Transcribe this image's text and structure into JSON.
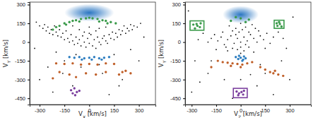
{
  "chart_data": [
    {
      "type": "scatter",
      "x_label": "VX [km/s]",
      "y_label": "VY [km/s]",
      "xlim": [
        -360,
        400
      ],
      "ylim": [
        -500,
        320
      ],
      "xticks": [
        -300,
        -150,
        0,
        150,
        300
      ],
      "yticks": [
        -450,
        -300,
        -150,
        0,
        150,
        300
      ],
      "series": [
        {
          "type": "density",
          "color": "#1f6fbf",
          "x": [
            0
          ],
          "y": [
            235
          ],
          "x_spread": [
            150
          ],
          "y_spread": [
            70
          ]
        },
        {
          "color": "#111111",
          "marker": "circle",
          "x": [
            -300,
            -280,
            -270,
            -260,
            -250,
            -240,
            -230,
            -220,
            -210,
            -200,
            -190,
            -180,
            -170,
            -160,
            -150,
            -140,
            -130,
            -120,
            -110,
            -100,
            -90,
            -80,
            -70,
            -60,
            -50,
            -40,
            -30,
            -20,
            -10,
            0,
            10,
            20,
            30,
            40,
            50,
            60,
            70,
            80,
            90,
            100,
            110,
            120,
            130,
            140,
            150,
            160,
            170,
            180,
            190,
            200,
            210,
            220,
            230,
            240,
            250,
            260,
            270,
            290,
            310,
            -320,
            0,
            -60,
            60,
            -30,
            40,
            -100,
            100,
            0,
            -200,
            -150,
            -250,
            150,
            250,
            -50,
            80,
            200,
            -300,
            -100,
            120,
            -220,
            300,
            30,
            -80,
            180,
            -160,
            60,
            -330,
            330
          ],
          "y": [
            130,
            110,
            140,
            90,
            120,
            70,
            100,
            60,
            130,
            80,
            50,
            100,
            40,
            70,
            20,
            90,
            30,
            0,
            60,
            10,
            -20,
            40,
            -10,
            20,
            -30,
            50,
            0,
            -40,
            30,
            -10,
            60,
            -30,
            20,
            -50,
            40,
            0,
            -20,
            30,
            50,
            10,
            -10,
            60,
            30,
            80,
            20,
            70,
            40,
            100,
            60,
            90,
            130,
            70,
            110,
            90,
            140,
            100,
            130,
            120,
            150,
            160,
            120,
            100,
            110,
            80,
            90,
            130,
            120,
            70,
            -80,
            -150,
            -200,
            -100,
            -60,
            -200,
            -250,
            -300,
            -300,
            -350,
            -420,
            -400,
            -150,
            -120,
            -100,
            -350,
            -250,
            -180,
            -50,
            40
          ]
        },
        {
          "color": "#3a9a4a",
          "marker": "circle",
          "x": [
            -200,
            -180,
            -150,
            -120,
            -100,
            -80,
            -50,
            -20,
            0,
            20,
            50,
            80,
            100,
            130,
            160,
            -140,
            -60,
            60,
            110,
            -220
          ],
          "y": [
            120,
            130,
            150,
            160,
            170,
            175,
            185,
            190,
            195,
            190,
            185,
            175,
            170,
            160,
            150,
            140,
            165,
            165,
            150,
            100
          ]
        },
        {
          "color": "#2f7fc1",
          "marker": "circle",
          "x": [
            -120,
            -90,
            -60,
            -30,
            0,
            30,
            60,
            90,
            120,
            -45,
            15,
            75
          ],
          "y": [
            -120,
            -125,
            -120,
            -130,
            -125,
            -120,
            -130,
            -125,
            -120,
            -140,
            -140,
            -140
          ]
        },
        {
          "color": "#c0602a",
          "marker": "circle",
          "x": [
            -200,
            -150,
            -100,
            -50,
            0,
            50,
            100,
            150,
            200,
            220,
            250,
            -180,
            -120,
            -80,
            -20,
            40,
            100,
            180,
            -220
          ],
          "y": [
            -170,
            -175,
            -170,
            -180,
            -175,
            -180,
            -170,
            -175,
            -240,
            -230,
            -250,
            -240,
            -260,
            -280,
            -250,
            -260,
            -240,
            -260,
            -290
          ]
        },
        {
          "color": "#7b3f9e",
          "marker": "circle",
          "x": [
            -110,
            -90,
            -75,
            -100,
            -60,
            -85
          ],
          "y": [
            -385,
            -370,
            -400,
            -410,
            -390,
            -425
          ]
        }
      ]
    },
    {
      "type": "scatter",
      "x_label": "VZ [km/s]",
      "y_label": "VY [km/s]",
      "xlim": [
        -340,
        430
      ],
      "ylim": [
        -500,
        320
      ],
      "xticks": [
        -300,
        -150,
        0,
        150,
        300
      ],
      "yticks": [
        -450,
        -300,
        -150,
        0,
        150,
        300
      ],
      "series": [
        {
          "type": "density",
          "color": "#1f6fbf",
          "x": [
            0
          ],
          "y": [
            220
          ],
          "x_spread": [
            110
          ],
          "y_spread": [
            70
          ]
        },
        {
          "color": "#111111",
          "marker": "circle",
          "x": [
            0,
            -20,
            20,
            -40,
            40,
            -60,
            60,
            -80,
            80,
            -100,
            100,
            -120,
            120,
            -140,
            140,
            -160,
            160,
            -180,
            180,
            -200,
            200,
            -10,
            10,
            -30,
            30,
            -50,
            50,
            0,
            -20,
            20,
            -50,
            50,
            -80,
            80,
            0,
            -110,
            110,
            -70,
            70,
            0,
            -230,
            230,
            -260,
            260,
            -150,
            150,
            -30,
            30,
            -90,
            90,
            -280,
            -200,
            250,
            300,
            -100,
            100,
            -300,
            200,
            0,
            -50,
            150,
            -250,
            320,
            -320,
            280,
            -180,
            120,
            60
          ],
          "y": [
            0,
            30,
            40,
            -10,
            10,
            50,
            60,
            20,
            30,
            -20,
            0,
            40,
            50,
            10,
            20,
            60,
            70,
            30,
            -10,
            0,
            40,
            80,
            100,
            110,
            120,
            90,
            80,
            -40,
            -60,
            -70,
            -50,
            -40,
            -70,
            -80,
            -90,
            80,
            90,
            130,
            140,
            150,
            70,
            80,
            20,
            30,
            -60,
            -50,
            60,
            -20,
            -40,
            110,
            -150,
            -250,
            -150,
            -300,
            -300,
            -350,
            -400,
            -420,
            -300,
            -450,
            -250,
            -320,
            200,
            250,
            -50,
            -150,
            -180,
            -260
          ]
        },
        {
          "color": "#3a9a4a",
          "marker": "circle",
          "x": [
            -280,
            -265,
            -250,
            -270,
            -245,
            -290,
            225,
            240,
            250,
            235,
            220,
            -60,
            50,
            0,
            -30,
            30
          ],
          "y": [
            110,
            130,
            120,
            145,
            150,
            140,
            130,
            145,
            125,
            160,
            150,
            170,
            180,
            190,
            200,
            160
          ]
        },
        {
          "color": "#2f7fc1",
          "marker": "circle",
          "x": [
            -30,
            -15,
            0,
            15,
            30,
            -10,
            10,
            20
          ],
          "y": [
            -120,
            -135,
            -125,
            -140,
            -130,
            -110,
            -150,
            -115
          ]
        },
        {
          "color": "#c0602a",
          "marker": "circle",
          "x": [
            -140,
            -110,
            -80,
            -50,
            -20,
            10,
            40,
            70,
            -60,
            0,
            150,
            180,
            210,
            230,
            260,
            200,
            -180,
            120
          ],
          "y": [
            -150,
            -160,
            -165,
            -170,
            -175,
            -180,
            -170,
            -160,
            -190,
            -200,
            -220,
            -240,
            -230,
            -260,
            -270,
            -250,
            -200,
            -200
          ]
        },
        {
          "color": "#7b3f9e",
          "marker": "circle",
          "x": [
            -25,
            -10,
            5,
            15,
            -15,
            20
          ],
          "y": [
            -395,
            -410,
            -400,
            -420,
            -425,
            -390
          ]
        }
      ],
      "boxes": [
        {
          "color": "#3a9a4a",
          "x": [
            -310,
            -225
          ],
          "y": [
            95,
            170
          ]
        },
        {
          "color": "#3a9a4a",
          "x": [
            205,
            265
          ],
          "y": [
            110,
            175
          ]
        },
        {
          "color": "#7b3f9e",
          "x": [
            -45,
            40
          ],
          "y": [
            -445,
            -370
          ]
        }
      ]
    }
  ]
}
